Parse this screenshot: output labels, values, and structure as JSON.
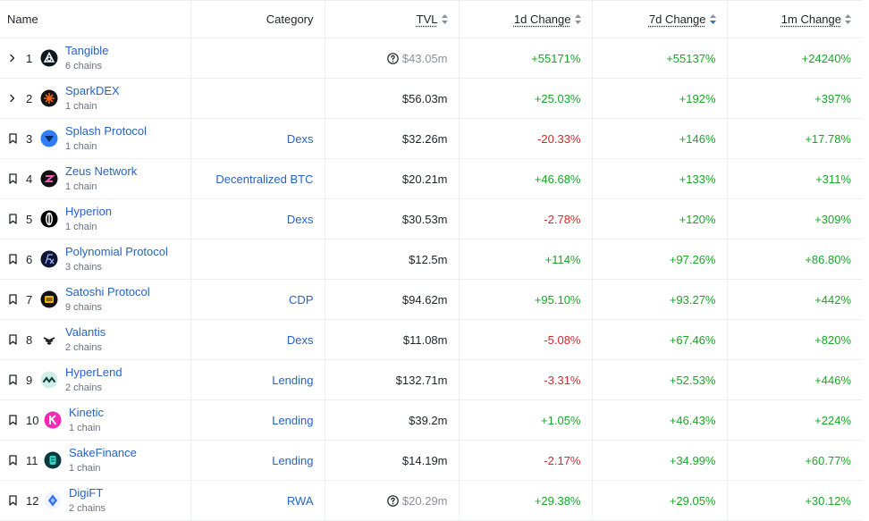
{
  "columns": {
    "name": "Name",
    "category": "Category",
    "tvl": "TVL",
    "change_1d": "1d Change",
    "change_7d": "7d Change",
    "change_1m": "1m Change"
  },
  "rows": [
    {
      "rank": "1",
      "name": "Tangible",
      "chains": "6 chains",
      "category": "",
      "tvl": "$43.05m",
      "tvl_note": true,
      "c1d": "+55171%",
      "c7d": "+55137%",
      "c1m": "+24240%",
      "control": "expand",
      "logo": "tangible-logo"
    },
    {
      "rank": "2",
      "name": "SparkDEX",
      "chains": "1 chain",
      "category": "",
      "tvl": "$56.03m",
      "tvl_note": false,
      "c1d": "+25.03%",
      "c7d": "+192%",
      "c1m": "+397%",
      "control": "expand",
      "logo": "sparkdex-logo"
    },
    {
      "rank": "3",
      "name": "Splash Protocol",
      "chains": "1 chain",
      "category": "Dexs",
      "tvl": "$32.26m",
      "tvl_note": false,
      "c1d": "-20.33%",
      "c7d": "+146%",
      "c1m": "+17.78%",
      "control": "bookmark",
      "logo": "splash-logo"
    },
    {
      "rank": "4",
      "name": "Zeus Network",
      "chains": "1 chain",
      "category": "Decentralized BTC",
      "tvl": "$20.21m",
      "tvl_note": false,
      "c1d": "+46.68%",
      "c7d": "+133%",
      "c1m": "+311%",
      "control": "bookmark",
      "logo": "zeus-logo"
    },
    {
      "rank": "5",
      "name": "Hyperion",
      "chains": "1 chain",
      "category": "Dexs",
      "tvl": "$30.53m",
      "tvl_note": false,
      "c1d": "-2.78%",
      "c7d": "+120%",
      "c1m": "+309%",
      "control": "bookmark",
      "logo": "hyperion-logo"
    },
    {
      "rank": "6",
      "name": "Polynomial Protocol",
      "chains": "3 chains",
      "category": "",
      "tvl": "$12.5m",
      "tvl_note": false,
      "c1d": "+114%",
      "c7d": "+97.26%",
      "c1m": "+86.80%",
      "control": "bookmark",
      "logo": "polynomial-logo"
    },
    {
      "rank": "7",
      "name": "Satoshi Protocol",
      "chains": "9 chains",
      "category": "CDP",
      "tvl": "$94.62m",
      "tvl_note": false,
      "c1d": "+95.10%",
      "c7d": "+93.27%",
      "c1m": "+442%",
      "control": "bookmark",
      "logo": "satoshi-logo"
    },
    {
      "rank": "8",
      "name": "Valantis",
      "chains": "2 chains",
      "category": "Dexs",
      "tvl": "$11.08m",
      "tvl_note": false,
      "c1d": "-5.08%",
      "c7d": "+67.46%",
      "c1m": "+820%",
      "control": "bookmark",
      "logo": "valantis-logo"
    },
    {
      "rank": "9",
      "name": "HyperLend",
      "chains": "2 chains",
      "category": "Lending",
      "tvl": "$132.71m",
      "tvl_note": false,
      "c1d": "-3.31%",
      "c7d": "+52.53%",
      "c1m": "+446%",
      "control": "bookmark",
      "logo": "hyperlend-logo"
    },
    {
      "rank": "10",
      "name": "Kinetic",
      "chains": "1 chain",
      "category": "Lending",
      "tvl": "$39.2m",
      "tvl_note": false,
      "c1d": "+1.05%",
      "c7d": "+46.43%",
      "c1m": "+224%",
      "control": "bookmark",
      "logo": "kinetic-logo"
    },
    {
      "rank": "11",
      "name": "SakeFinance",
      "chains": "1 chain",
      "category": "Lending",
      "tvl": "$14.19m",
      "tvl_note": false,
      "c1d": "-2.17%",
      "c7d": "+34.99%",
      "c1m": "+60.77%",
      "control": "bookmark",
      "logo": "sakefinance-logo"
    },
    {
      "rank": "12",
      "name": "DigiFT",
      "chains": "2 chains",
      "category": "RWA",
      "tvl": "$20.29m",
      "tvl_note": true,
      "c1d": "+29.38%",
      "c7d": "+29.05%",
      "c1m": "+30.12%",
      "control": "bookmark",
      "logo": "digift-logo"
    }
  ],
  "colors": {
    "link": "#2862c3",
    "positive": "#1aa628",
    "negative": "#d22b2b",
    "muted": "#8a9099",
    "sort_active": "#2f6fd1"
  }
}
